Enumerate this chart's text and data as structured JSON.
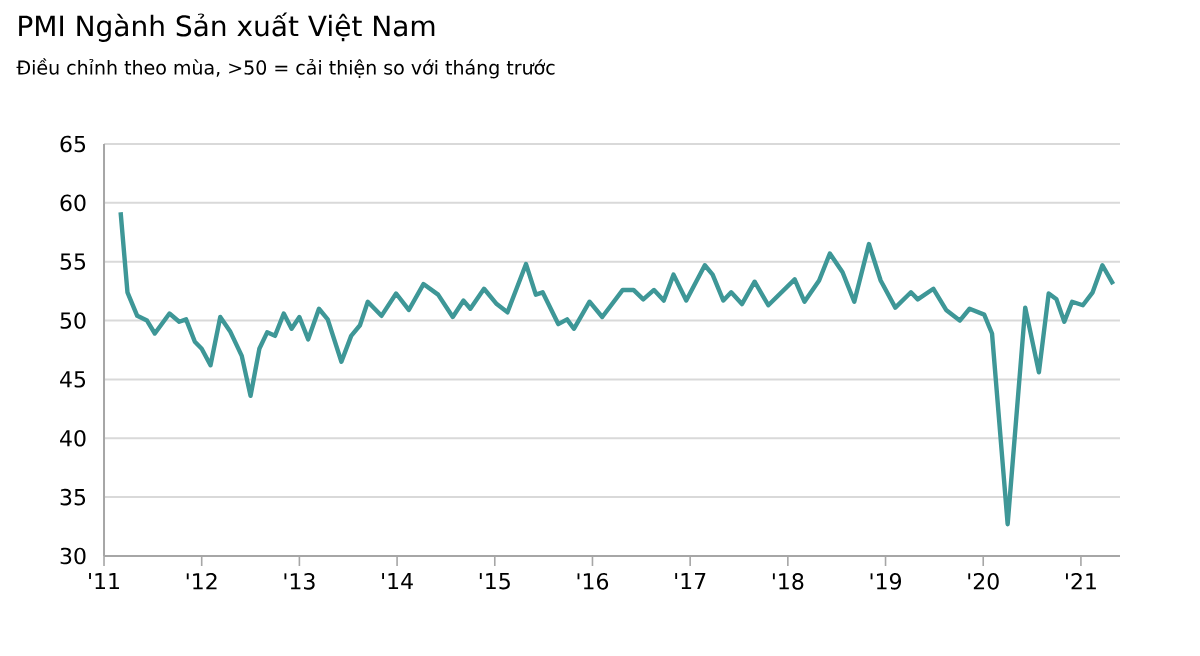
{
  "chart_data": {
    "type": "line",
    "title": "PMI Ngành Sản xuất Việt Nam",
    "subtitle": "Điều chỉnh theo mùa, >50 = cải thiện so với tháng trước",
    "x": [
      2011.17,
      2011.24,
      2011.34,
      2011.44,
      2011.52,
      2011.67,
      2011.77,
      2011.84,
      2011.93,
      2012.0,
      2012.09,
      2012.19,
      2012.29,
      2012.41,
      2012.5,
      2012.59,
      2012.67,
      2012.75,
      2012.84,
      2012.92,
      2013.0,
      2013.09,
      2013.2,
      2013.29,
      2013.43,
      2013.53,
      2013.62,
      2013.7,
      2013.84,
      2013.99,
      2014.12,
      2014.27,
      2014.42,
      2014.57,
      2014.68,
      2014.75,
      2014.89,
      2015.02,
      2015.13,
      2015.32,
      2015.42,
      2015.49,
      2015.65,
      2015.74,
      2015.81,
      2015.97,
      2016.1,
      2016.31,
      2016.42,
      2016.52,
      2016.63,
      2016.73,
      2016.83,
      2016.96,
      2017.15,
      2017.23,
      2017.34,
      2017.42,
      2017.53,
      2017.66,
      2017.8,
      2018.07,
      2018.17,
      2018.32,
      2018.43,
      2018.56,
      2018.68,
      2018.83,
      2018.95,
      2019.1,
      2019.26,
      2019.33,
      2019.49,
      2019.62,
      2019.76,
      2019.86,
      2020.01,
      2020.09,
      2020.25,
      2020.43,
      2020.57,
      2020.67,
      2020.75,
      2020.83,
      2020.91,
      2021.02,
      2021.12,
      2021.22,
      2021.33
    ],
    "series": [
      {
        "color": "#3e9797",
        "values": [
          59.2,
          52.4,
          50.4,
          50.0,
          48.9,
          50.6,
          49.9,
          50.1,
          48.2,
          47.6,
          46.2,
          50.3,
          49.1,
          47.0,
          43.6,
          47.6,
          49.0,
          48.7,
          50.6,
          49.3,
          50.3,
          48.4,
          51.0,
          50.1,
          46.5,
          48.7,
          49.6,
          51.6,
          50.4,
          52.3,
          50.9,
          53.1,
          52.2,
          50.3,
          51.7,
          51.0,
          52.7,
          51.4,
          50.7,
          54.8,
          52.2,
          52.4,
          49.7,
          50.1,
          49.3,
          51.6,
          50.3,
          52.6,
          52.6,
          51.8,
          52.6,
          51.7,
          53.9,
          51.7,
          54.7,
          53.9,
          51.7,
          52.4,
          51.4,
          53.3,
          51.3,
          53.5,
          51.6,
          53.4,
          55.7,
          54.1,
          51.6,
          56.5,
          53.4,
          51.1,
          52.4,
          51.8,
          52.7,
          50.9,
          50.0,
          51.0,
          50.5,
          48.9,
          32.7,
          51.1,
          45.6,
          52.3,
          51.8,
          49.9,
          51.6,
          51.3,
          52.4,
          54.7,
          53.1
        ]
      }
    ],
    "xlim": [
      2011,
      2021.4
    ],
    "ylim": [
      30,
      65
    ],
    "xticks": [
      {
        "value": 2011,
        "label": "'11"
      },
      {
        "value": 2012,
        "label": "'12"
      },
      {
        "value": 2013,
        "label": "'13"
      },
      {
        "value": 2014,
        "label": "'14"
      },
      {
        "value": 2015,
        "label": "'15"
      },
      {
        "value": 2016,
        "label": "'16"
      },
      {
        "value": 2017,
        "label": "'17"
      },
      {
        "value": 2018,
        "label": "'18"
      },
      {
        "value": 2019,
        "label": "'19"
      },
      {
        "value": 2020,
        "label": "'20"
      },
      {
        "value": 2021,
        "label": "'21"
      }
    ],
    "yticks": [
      30,
      35,
      40,
      45,
      50,
      55,
      60,
      65
    ],
    "grid": "y",
    "marker": "none",
    "line_style": "solid"
  }
}
